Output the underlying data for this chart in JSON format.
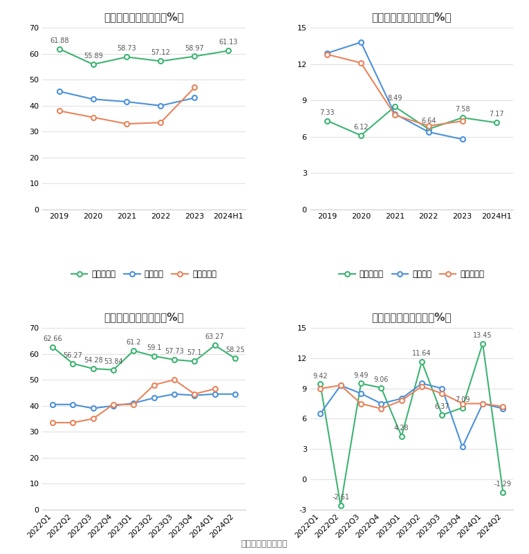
{
  "top_left": {
    "title": "历年毛利率变化情况（%）",
    "x_labels": [
      "2019",
      "2020",
      "2021",
      "2022",
      "2023",
      "2024H1"
    ],
    "company": [
      61.88,
      55.89,
      58.73,
      57.12,
      58.97,
      61.13
    ],
    "industry_mean": [
      45.5,
      42.5,
      41.5,
      40.0,
      43.0,
      null
    ],
    "industry_median": [
      38.0,
      35.5,
      33.0,
      33.5,
      47.0,
      null
    ],
    "ylim": [
      0,
      70
    ],
    "yticks": [
      0,
      10,
      20,
      30,
      40,
      50,
      60,
      70
    ]
  },
  "top_right": {
    "title": "历年净利率变化情况（%）",
    "x_labels": [
      "2019",
      "2020",
      "2021",
      "2022",
      "2023",
      "2024H1"
    ],
    "company": [
      7.33,
      6.12,
      8.49,
      6.64,
      7.58,
      7.17
    ],
    "industry_mean": [
      12.9,
      13.8,
      7.9,
      6.4,
      5.8,
      null
    ],
    "industry_median": [
      12.8,
      12.1,
      7.8,
      6.9,
      7.3,
      null
    ],
    "ylim": [
      0,
      15
    ],
    "yticks": [
      0,
      3,
      6,
      9,
      12,
      15
    ]
  },
  "bottom_left": {
    "title": "季度毛利率变化情况（%）",
    "x_labels": [
      "2022Q1",
      "2022Q2",
      "2022Q3",
      "2022Q4",
      "2023Q1",
      "2023Q2",
      "2023Q3",
      "2023Q4",
      "2024Q1",
      "2024Q2"
    ],
    "company": [
      62.66,
      56.27,
      54.28,
      53.84,
      61.2,
      59.1,
      57.73,
      57.1,
      63.27,
      58.25
    ],
    "industry_mean": [
      40.5,
      40.5,
      39.0,
      40.0,
      41.0,
      43.0,
      44.5,
      44.0,
      44.5,
      44.5
    ],
    "industry_median": [
      33.5,
      33.5,
      35.0,
      40.5,
      40.5,
      48.0,
      50.0,
      44.5,
      46.5,
      null
    ],
    "ylim": [
      0,
      70
    ],
    "yticks": [
      0,
      10,
      20,
      30,
      40,
      50,
      60,
      70
    ]
  },
  "bottom_right": {
    "title": "季度净利率变化情况（%）",
    "x_labels": [
      "2022Q1",
      "2022Q2",
      "2022Q3",
      "2022Q4",
      "2023Q1",
      "2023Q2",
      "2023Q3",
      "2023Q4",
      "2024Q1",
      "2024Q2"
    ],
    "company": [
      9.42,
      -2.61,
      9.49,
      9.06,
      4.28,
      11.64,
      6.37,
      7.09,
      13.45,
      -1.29
    ],
    "industry_mean": [
      6.5,
      9.3,
      8.5,
      7.5,
      8.0,
      9.5,
      9.0,
      3.2,
      7.5,
      7.0
    ],
    "industry_median": [
      9.0,
      9.3,
      7.5,
      7.0,
      7.8,
      9.2,
      8.5,
      7.5,
      7.5,
      7.2
    ],
    "ylim": [
      -3,
      15
    ],
    "yticks": [
      -3,
      0,
      3,
      6,
      9,
      12,
      15
    ]
  },
  "colors": {
    "company": "#3cb371",
    "industry_mean": "#4a90d9",
    "industry_median": "#e8835a"
  },
  "legend_labels": {
    "gross": [
      "公司毛利率",
      "行业均值",
      "行业中位数"
    ],
    "net": [
      "公司净利率",
      "行业均值",
      "行业中位数"
    ]
  },
  "footer": "数据来源：恒生聚源",
  "bg_color": "#ffffff",
  "grid_color": "#e0e0e0"
}
